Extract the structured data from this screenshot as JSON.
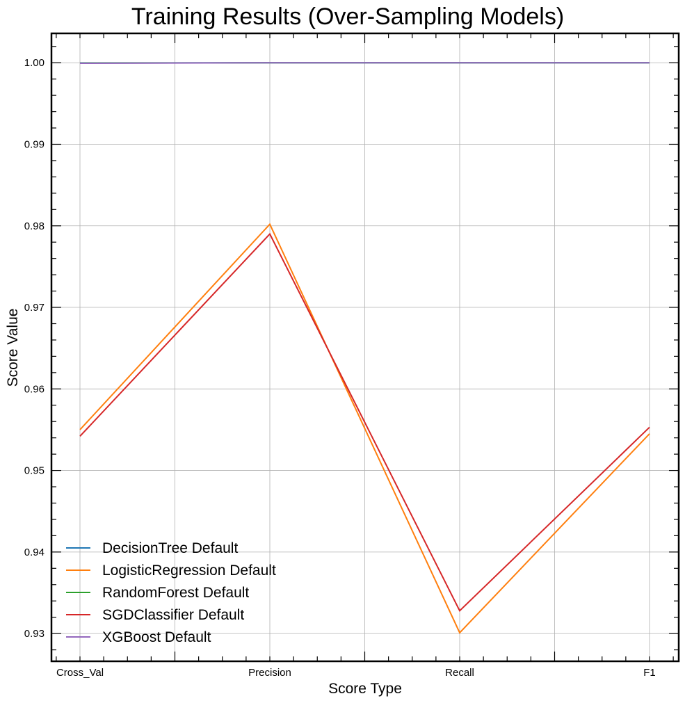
{
  "chart_data": {
    "type": "line",
    "title": "Training Results (Over-Sampling Models)",
    "xlabel": "Score Type",
    "ylabel": "Score Value",
    "categories": [
      "Cross_Val",
      "Precision",
      "Recall",
      "F1"
    ],
    "ylim": [
      0.9266,
      1.0036
    ],
    "yticks": [
      0.93,
      0.94,
      0.95,
      0.96,
      0.97,
      0.98,
      0.99,
      1.0
    ],
    "ytick_labels": [
      "0.93",
      "0.94",
      "0.95",
      "0.96",
      "0.97",
      "0.98",
      "0.99",
      "1.00"
    ],
    "grid": true,
    "legend_position": "lower-left",
    "series": [
      {
        "name": "DecisionTree Default",
        "color": "#1f77b4",
        "values": [
          0.99998,
          1.0,
          1.0,
          1.0
        ]
      },
      {
        "name": "LogisticRegression Default",
        "color": "#ff7f0e",
        "values": [
          0.955,
          0.9802,
          0.9301,
          0.9545
        ]
      },
      {
        "name": "RandomForest Default",
        "color": "#2ca02c",
        "values": [
          0.99996,
          1.0,
          1.0,
          1.0
        ]
      },
      {
        "name": "SGDClassifier Default",
        "color": "#d62728",
        "values": [
          0.9542,
          0.979,
          0.9328,
          0.9553
        ]
      },
      {
        "name": "XGBoost Default",
        "color": "#9467bd",
        "values": [
          0.99993,
          1.0,
          1.0,
          1.0
        ]
      }
    ]
  }
}
